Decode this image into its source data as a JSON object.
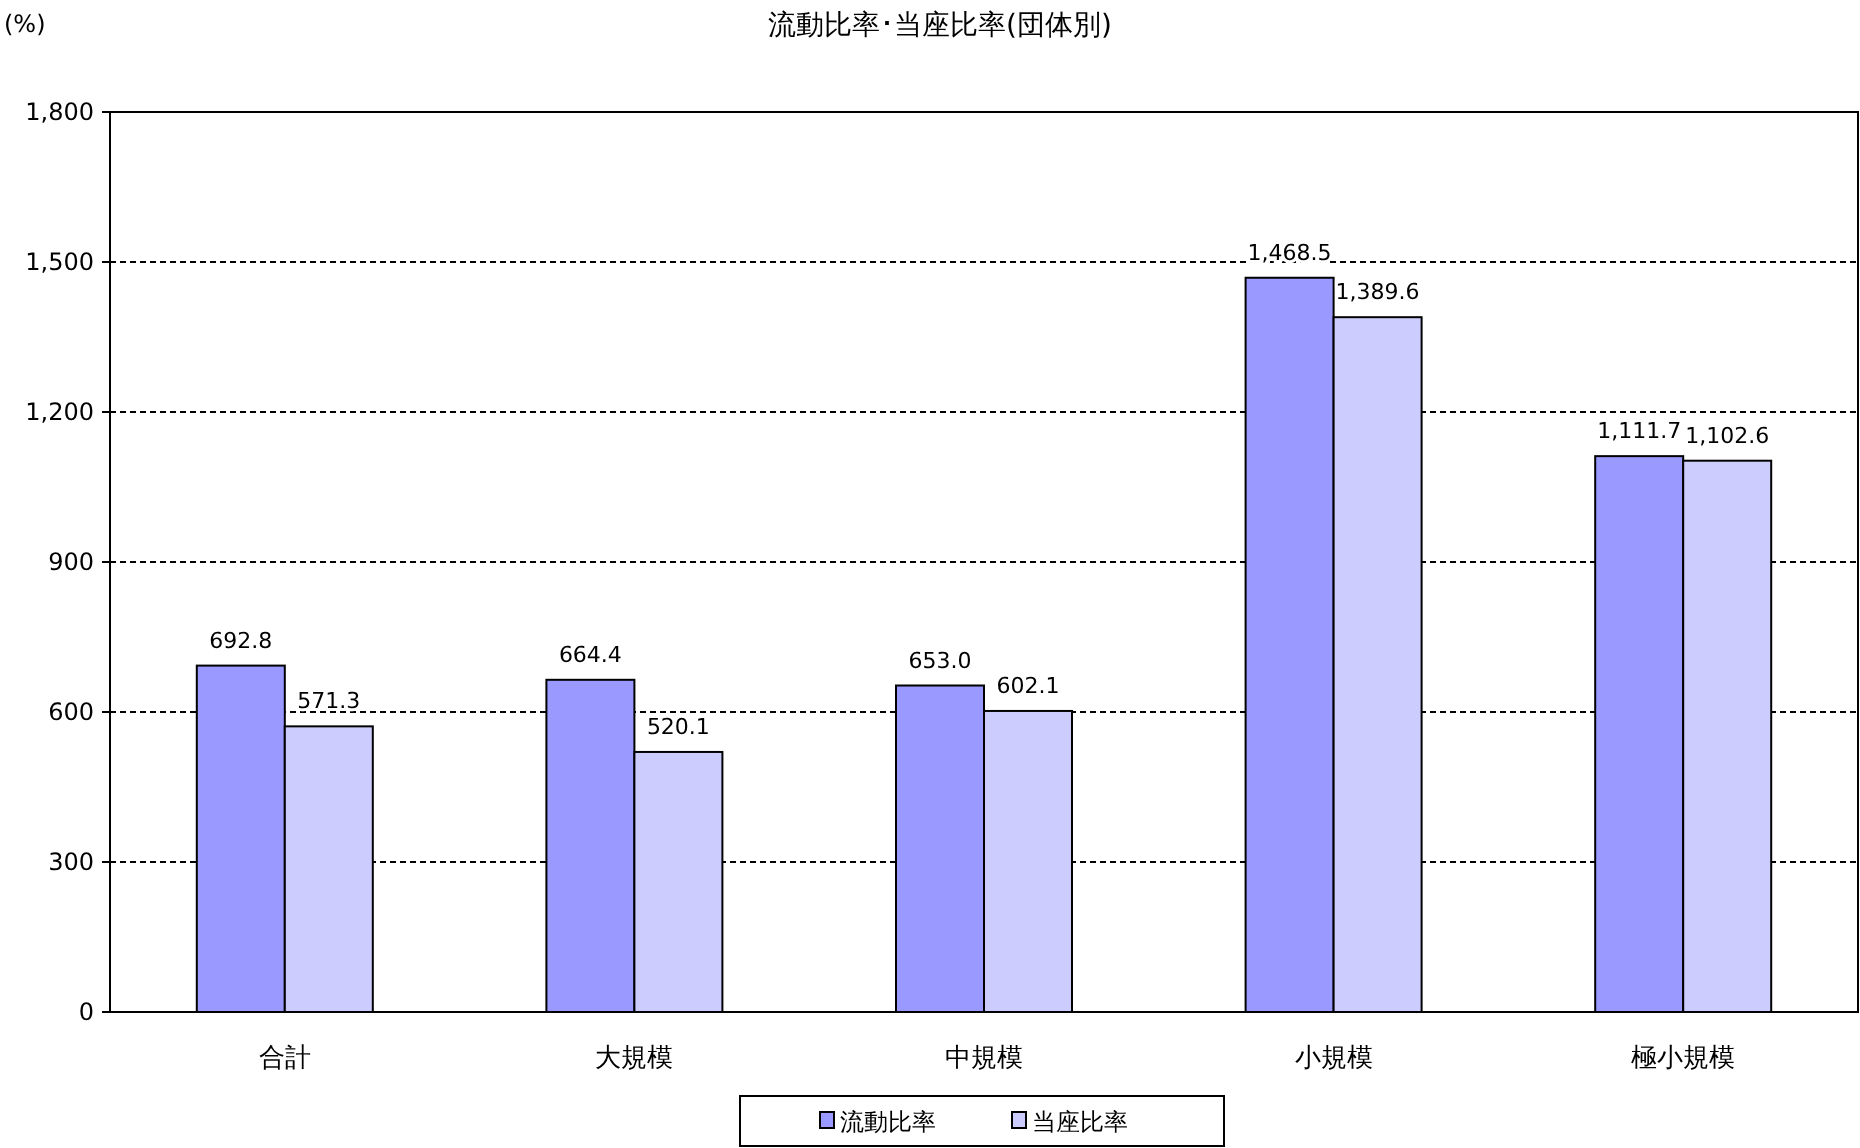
{
  "chart_data": {
    "type": "bar",
    "title": "流動比率･当座比率(団体別)",
    "ylabel": "(%)",
    "categories": [
      "合計",
      "大規模",
      "中規模",
      "小規模",
      "極小規模"
    ],
    "series": [
      {
        "name": "流動比率",
        "color": "#9999ff",
        "values": [
          692.8,
          664.4,
          653.0,
          1468.5,
          1111.7
        ],
        "value_labels": [
          "692.8",
          "664.4",
          "653.0",
          "1,468.5",
          "1,111.7"
        ]
      },
      {
        "name": "当座比率",
        "color": "#ccccff",
        "values": [
          571.3,
          520.1,
          602.1,
          1389.6,
          1102.6
        ],
        "value_labels": [
          "571.3",
          "520.1",
          "602.1",
          "1,389.6",
          "1,102.6"
        ]
      }
    ],
    "ylim": [
      0,
      1800
    ],
    "yticks": [
      0,
      300,
      600,
      900,
      {
        "value": 1200,
        "label": "1,200"
      },
      {
        "value": 1500,
        "label": "1,500"
      },
      {
        "value": 1800,
        "label": "1,800"
      }
    ],
    "grid": "y",
    "legend": "bottom"
  }
}
